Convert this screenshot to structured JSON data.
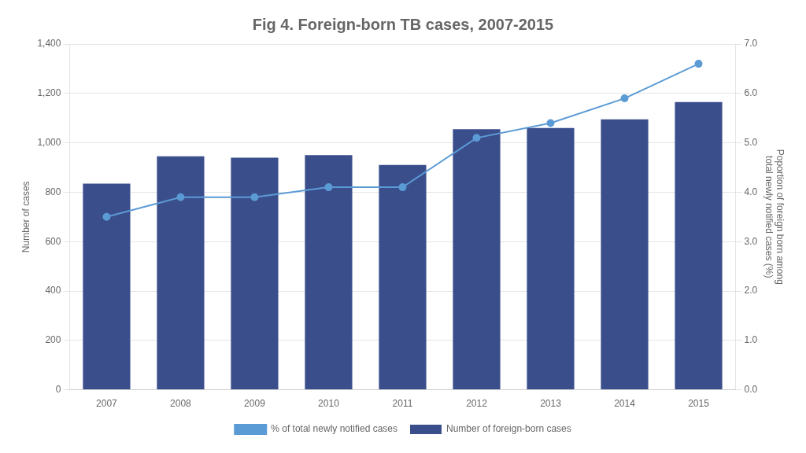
{
  "chart_data": {
    "type": "bar",
    "title": "Fig 4. Foreign-born TB cases, 2007-2015",
    "categories": [
      "2007",
      "2008",
      "2009",
      "2010",
      "2011",
      "2012",
      "2013",
      "2014",
      "2015"
    ],
    "series": [
      {
        "name": "Number of foreign-born cases",
        "type": "bar",
        "color": "#3B4E8C",
        "values": [
          835,
          945,
          940,
          950,
          910,
          1055,
          1060,
          1095,
          1165
        ]
      },
      {
        "name": "% of total newly notified cases",
        "type": "line",
        "color": "#5B9BD5",
        "marker": "circle",
        "axis": "y2",
        "values": [
          3.5,
          3.9,
          3.9,
          4.1,
          4.1,
          5.1,
          5.4,
          5.9,
          6.6
        ]
      }
    ],
    "ylabel": "Number of cases",
    "y2label": "Poportion of foreign born among\ntotal newly notified cases (%)",
    "ylim": [
      0,
      1400
    ],
    "yticks": [
      0,
      200,
      400,
      600,
      800,
      {
        "value": 1000,
        "label": "1,000"
      },
      {
        "value": 1200,
        "label": "1,200"
      },
      {
        "value": 1400,
        "label": "1,400"
      }
    ],
    "y2lim": [
      0.0,
      7.0
    ],
    "y2ticks": [
      {
        "value": 0.0,
        "label": "0.0"
      },
      {
        "value": 1.0,
        "label": "1.0"
      },
      {
        "value": 2.0,
        "label": "2.0"
      },
      {
        "value": 3.0,
        "label": "3.0"
      },
      {
        "value": 4.0,
        "label": "4.0"
      },
      {
        "value": 5.0,
        "label": "5.0"
      },
      {
        "value": 6.0,
        "label": "6.0"
      },
      {
        "value": 7.0,
        "label": "7.0"
      }
    ],
    "grid": true,
    "legend": "bottom"
  }
}
